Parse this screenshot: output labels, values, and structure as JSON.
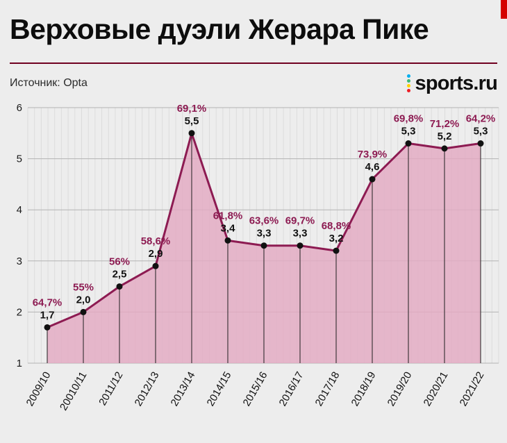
{
  "header": {
    "title": "Верховые дуэли Жерара Пике",
    "source": "Источник: Opta",
    "logo_text": "sports.ru"
  },
  "colors": {
    "background": "#ededed",
    "accent": "#8d1b52",
    "area_fill": "#e3a9c2",
    "separator": "#70001f",
    "corner_mark": "#d40000",
    "grid_vertical": "#dcdcdc",
    "grid_horizontal": "#b3b3b3",
    "point": "#111111",
    "value_text": "#111111",
    "logo_dots": [
      "#00aeef",
      "#3cb878",
      "#ffd200",
      "#ed1c24"
    ]
  },
  "chart_data": {
    "type": "area",
    "title": "Верховые дуэли Жерара Пике",
    "source": "Opta",
    "categories": [
      "2009/10",
      "20010/11",
      "2011/12",
      "2012/13",
      "2013/14",
      "2014/15",
      "2015/16",
      "2016/17",
      "2017/18",
      "2018/19",
      "2019/20",
      "2020/21",
      "2021/22"
    ],
    "values": [
      1.7,
      2.0,
      2.5,
      2.9,
      5.5,
      3.4,
      3.3,
      3.3,
      3.2,
      4.6,
      5.3,
      5.2,
      5.3
    ],
    "value_labels": [
      "1,7",
      "2,0",
      "2,5",
      "2,9",
      "5,5",
      "3,4",
      "3,3",
      "3,3",
      "3,2",
      "4,6",
      "5,3",
      "5,2",
      "5,3"
    ],
    "percent_labels": [
      "64,7%",
      "55%",
      "56%",
      "58,6%",
      "69,1%",
      "61,8%",
      "63,6%",
      "69,7%",
      "68,8%",
      "73,9%",
      "69,8%",
      "71,2%",
      "64,2%"
    ],
    "y_ticks": [
      1,
      2,
      3,
      4,
      5,
      6
    ],
    "ylim": [
      1,
      6
    ],
    "xlabel": "",
    "ylabel": "",
    "grid": true,
    "legend": false
  }
}
